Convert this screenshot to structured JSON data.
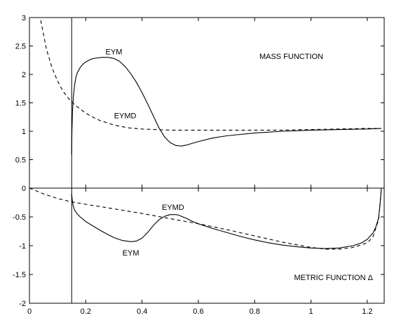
{
  "chart_data": [
    {
      "type": "line",
      "title": "",
      "xlabel": "",
      "ylabel": "",
      "xlim": [
        0,
        1.26
      ],
      "ylim": [
        0,
        3
      ],
      "x_ticks": [
        0,
        0.2,
        0.4,
        0.6,
        0.8,
        1,
        1.2
      ],
      "y_ticks": [
        0,
        0.5,
        1,
        1.5,
        2,
        2.5,
        3
      ],
      "y_tick_labels": [
        "",
        "0.5",
        "1",
        "1.5",
        "2",
        "2.5",
        "3"
      ],
      "grid": false,
      "annotations": [
        {
          "text": "MASS FUNCTION",
          "x": 0.93,
          "y": 2.32
        },
        {
          "text": "EYM",
          "x": 0.3,
          "y": 2.4
        },
        {
          "text": "EYMD",
          "x": 0.34,
          "y": 1.28
        }
      ],
      "vertical_line_x": 0.15,
      "series": [
        {
          "name": "EYM",
          "style": "solid",
          "color": "#000000",
          "x": [
            0.15,
            0.151,
            0.153,
            0.156,
            0.16,
            0.165,
            0.17,
            0.18,
            0.19,
            0.2,
            0.22,
            0.24,
            0.26,
            0.28,
            0.3,
            0.32,
            0.34,
            0.36,
            0.38,
            0.4,
            0.42,
            0.44,
            0.46,
            0.48,
            0.5,
            0.52,
            0.54,
            0.56,
            0.6,
            0.65,
            0.7,
            0.8,
            0.9,
            1.0,
            1.1,
            1.2,
            1.25
          ],
          "y": [
            0.58,
            1.0,
            1.35,
            1.6,
            1.8,
            1.95,
            2.03,
            2.12,
            2.18,
            2.22,
            2.27,
            2.29,
            2.3,
            2.3,
            2.28,
            2.23,
            2.14,
            2.01,
            1.86,
            1.68,
            1.48,
            1.27,
            1.06,
            0.9,
            0.8,
            0.75,
            0.74,
            0.76,
            0.82,
            0.88,
            0.92,
            0.97,
            1.0,
            1.02,
            1.03,
            1.04,
            1.05
          ]
        },
        {
          "name": "EYMD",
          "style": "dashed",
          "color": "#000000",
          "x": [
            0.04,
            0.06,
            0.08,
            0.1,
            0.12,
            0.14,
            0.16,
            0.18,
            0.2,
            0.22,
            0.25,
            0.3,
            0.35,
            0.4,
            0.45,
            0.5,
            0.55,
            0.6,
            0.7,
            0.8,
            0.9,
            1.0,
            1.1,
            1.2,
            1.25
          ],
          "y": [
            2.95,
            2.45,
            2.12,
            1.88,
            1.7,
            1.57,
            1.47,
            1.39,
            1.32,
            1.26,
            1.19,
            1.11,
            1.06,
            1.04,
            1.03,
            1.02,
            1.02,
            1.02,
            1.02,
            1.02,
            1.02,
            1.03,
            1.04,
            1.05,
            1.05
          ]
        }
      ]
    },
    {
      "type": "line",
      "title": "",
      "xlabel": "",
      "ylabel": "",
      "xlim": [
        0,
        1.26
      ],
      "ylim": [
        -2,
        0
      ],
      "x_ticks": [
        0,
        0.2,
        0.4,
        0.6,
        0.8,
        1,
        1.2
      ],
      "x_tick_labels": [
        "0",
        "0.2",
        "0.4",
        "0.6",
        "0.8",
        "1",
        "1.2"
      ],
      "y_ticks": [
        -2,
        -1.5,
        -1,
        -0.5,
        0
      ],
      "y_tick_labels": [
        "-2",
        "-1.5",
        "-1",
        "-0.5",
        "0"
      ],
      "grid": false,
      "annotations": [
        {
          "text": "METRIC FUNCTION Δ",
          "x": 1.08,
          "y": -1.55
        },
        {
          "text": "EYMD",
          "x": 0.51,
          "y": -0.33
        },
        {
          "text": "EYM",
          "x": 0.36,
          "y": -1.12
        }
      ],
      "vertical_line_x": 0.15,
      "series": [
        {
          "name": "EYM",
          "style": "solid",
          "color": "#000000",
          "x": [
            0.15,
            0.152,
            0.155,
            0.16,
            0.17,
            0.18,
            0.2,
            0.22,
            0.25,
            0.28,
            0.3,
            0.33,
            0.36,
            0.38,
            0.4,
            0.42,
            0.44,
            0.46,
            0.48,
            0.5,
            0.52,
            0.53,
            0.54,
            0.56,
            0.58,
            0.6,
            0.65,
            0.7,
            0.75,
            0.8,
            0.85,
            0.9,
            0.95,
            1.0,
            1.05,
            1.1,
            1.15,
            1.18,
            1.2,
            1.22,
            1.23,
            1.24,
            1.245,
            1.25
          ],
          "y": [
            -0.1,
            -0.2,
            -0.3,
            -0.38,
            -0.45,
            -0.5,
            -0.58,
            -0.64,
            -0.73,
            -0.81,
            -0.86,
            -0.91,
            -0.93,
            -0.92,
            -0.87,
            -0.77,
            -0.65,
            -0.55,
            -0.49,
            -0.46,
            -0.46,
            -0.47,
            -0.49,
            -0.53,
            -0.58,
            -0.62,
            -0.7,
            -0.77,
            -0.84,
            -0.9,
            -0.95,
            -0.99,
            -1.02,
            -1.04,
            -1.05,
            -1.04,
            -1.0,
            -0.95,
            -0.89,
            -0.78,
            -0.68,
            -0.52,
            -0.3,
            0.0
          ]
        },
        {
          "name": "EYMD",
          "style": "dashed",
          "color": "#000000",
          "x": [
            0.0,
            0.05,
            0.1,
            0.15,
            0.2,
            0.3,
            0.4,
            0.5,
            0.6,
            0.7,
            0.8,
            0.9,
            1.0,
            1.05,
            1.1,
            1.15,
            1.2,
            1.22,
            1.24,
            1.25
          ],
          "y": [
            0.0,
            -0.1,
            -0.18,
            -0.24,
            -0.28,
            -0.36,
            -0.44,
            -0.53,
            -0.62,
            -0.72,
            -0.83,
            -0.94,
            -1.03,
            -1.06,
            -1.06,
            -1.03,
            -0.95,
            -0.85,
            -0.55,
            0.0
          ]
        }
      ]
    }
  ]
}
